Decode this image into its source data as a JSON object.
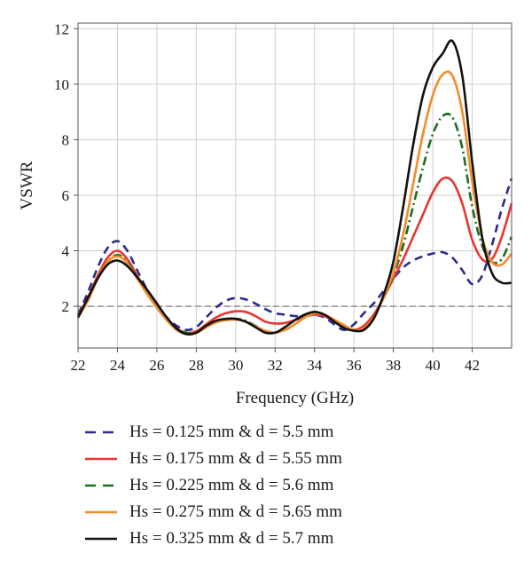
{
  "chart_data": {
    "type": "line",
    "xlabel": "Frequency (GHz)",
    "ylabel": "VSWR",
    "xlim": [
      22,
      44
    ],
    "ylim": [
      0.5,
      12.2
    ],
    "xticks": [
      "22",
      "24",
      "26",
      "28",
      "30",
      "32",
      "34",
      "36",
      "38",
      "40",
      "42"
    ],
    "yticks": [
      "2",
      "4",
      "6",
      "8",
      "10",
      "12"
    ],
    "grid": true,
    "legend_position": "bottom",
    "reference_line": {
      "y": 2,
      "color": "#999999",
      "style": "dashed"
    },
    "series": [
      {
        "name": "Hs = 0.125 mm & d = 5.5 mm",
        "color": "#2b2b8a",
        "style": "dashed",
        "x": [
          22,
          22.5,
          23,
          23.5,
          24,
          24.5,
          25,
          25.5,
          26,
          26.5,
          27,
          27.5,
          28,
          28.5,
          29,
          29.5,
          30,
          30.5,
          31,
          31.5,
          32,
          32.5,
          33,
          33.5,
          34,
          34.5,
          35,
          35.5,
          36,
          36.5,
          37,
          37.5,
          38,
          38.5,
          39,
          39.5,
          40,
          40.5,
          41,
          41.5,
          42,
          42.5,
          43,
          43.5,
          44
        ],
        "values": [
          1.7,
          2.5,
          3.4,
          4.1,
          4.35,
          4.0,
          3.3,
          2.6,
          2.0,
          1.6,
          1.3,
          1.15,
          1.25,
          1.6,
          1.95,
          2.2,
          2.3,
          2.25,
          2.1,
          1.9,
          1.75,
          1.7,
          1.65,
          1.65,
          1.7,
          1.6,
          1.35,
          1.15,
          1.35,
          1.75,
          2.1,
          2.55,
          3.0,
          3.4,
          3.65,
          3.8,
          3.9,
          3.95,
          3.75,
          3.3,
          2.8,
          3.1,
          4.2,
          5.5,
          6.6
        ]
      },
      {
        "name": "Hs = 0.175 mm & d = 5.55 mm",
        "color": "#e8352f",
        "style": "solid",
        "x": [
          22,
          22.5,
          23,
          23.5,
          24,
          24.5,
          25,
          25.5,
          26,
          26.5,
          27,
          27.5,
          28,
          28.5,
          29,
          29.5,
          30,
          30.5,
          31,
          31.5,
          32,
          32.5,
          33,
          33.5,
          34,
          34.5,
          35,
          35.5,
          36,
          36.5,
          37,
          37.5,
          38,
          38.5,
          39,
          39.5,
          40,
          40.5,
          41,
          41.5,
          42,
          42.5,
          43,
          43.5,
          44
        ],
        "values": [
          1.65,
          2.3,
          3.1,
          3.75,
          4.0,
          3.7,
          3.1,
          2.5,
          2.0,
          1.55,
          1.2,
          1.05,
          1.1,
          1.35,
          1.6,
          1.75,
          1.82,
          1.8,
          1.65,
          1.45,
          1.38,
          1.4,
          1.5,
          1.62,
          1.7,
          1.65,
          1.45,
          1.25,
          1.15,
          1.3,
          1.7,
          2.3,
          3.0,
          3.7,
          4.5,
          5.3,
          6.1,
          6.6,
          6.5,
          5.7,
          4.4,
          3.7,
          3.7,
          4.5,
          5.7
        ]
      },
      {
        "name": "Hs = 0.225 mm & d = 5.6 mm",
        "color": "#1e6b22",
        "style": "dashdot",
        "x": [
          22,
          22.5,
          23,
          23.5,
          24,
          24.5,
          25,
          25.5,
          26,
          26.5,
          27,
          27.5,
          28,
          28.5,
          29,
          29.5,
          30,
          30.5,
          31,
          31.5,
          32,
          32.5,
          33,
          33.5,
          34,
          34.5,
          35,
          35.5,
          36,
          36.5,
          37,
          37.5,
          38,
          38.5,
          39,
          39.5,
          40,
          40.5,
          41,
          41.5,
          42,
          42.5,
          43,
          43.5,
          44
        ],
        "values": [
          1.6,
          2.2,
          3.0,
          3.6,
          3.85,
          3.6,
          3.05,
          2.5,
          2.0,
          1.55,
          1.2,
          1.05,
          1.05,
          1.25,
          1.42,
          1.52,
          1.55,
          1.48,
          1.3,
          1.12,
          1.05,
          1.15,
          1.35,
          1.6,
          1.75,
          1.7,
          1.5,
          1.3,
          1.15,
          1.2,
          1.6,
          2.3,
          3.1,
          4.2,
          5.6,
          7.0,
          8.2,
          8.85,
          8.8,
          7.7,
          5.6,
          4.2,
          3.6,
          3.7,
          4.5
        ]
      },
      {
        "name": "Hs = 0.275 mm & d = 5.65 mm",
        "color": "#f28c28",
        "style": "solid",
        "x": [
          22,
          22.5,
          23,
          23.5,
          24,
          24.5,
          25,
          25.5,
          26,
          26.5,
          27,
          27.5,
          28,
          28.5,
          29,
          29.5,
          30,
          30.5,
          31,
          31.5,
          32,
          32.5,
          33,
          33.5,
          34,
          34.5,
          35,
          35.5,
          36,
          36.5,
          37,
          37.5,
          38,
          38.5,
          39,
          39.5,
          40,
          40.5,
          41,
          41.5,
          42,
          42.5,
          43,
          43.5,
          44
        ],
        "values": [
          1.6,
          2.2,
          3.0,
          3.6,
          3.8,
          3.55,
          3.0,
          2.45,
          1.95,
          1.5,
          1.15,
          1.0,
          1.05,
          1.25,
          1.42,
          1.5,
          1.52,
          1.45,
          1.28,
          1.12,
          1.05,
          1.15,
          1.35,
          1.6,
          1.75,
          1.7,
          1.52,
          1.32,
          1.15,
          1.2,
          1.6,
          2.3,
          3.2,
          4.6,
          6.4,
          8.2,
          9.6,
          10.35,
          10.3,
          9.0,
          6.5,
          4.5,
          3.6,
          3.5,
          3.9
        ]
      },
      {
        "name": "Hs = 0.325 mm & d = 5.7 mm",
        "color": "#111111",
        "style": "solid",
        "x": [
          22,
          22.5,
          23,
          23.5,
          24,
          24.5,
          25,
          25.5,
          26,
          26.5,
          27,
          27.5,
          28,
          28.5,
          29,
          29.5,
          30,
          30.5,
          31,
          31.5,
          32,
          32.5,
          33,
          33.5,
          34,
          34.5,
          35,
          35.5,
          36,
          36.5,
          37,
          37.5,
          38,
          38.5,
          39,
          39.5,
          40,
          40.5,
          41,
          41.5,
          42,
          42.5,
          43,
          43.5,
          44
        ],
        "values": [
          1.6,
          2.3,
          3.0,
          3.5,
          3.65,
          3.45,
          3.05,
          2.6,
          2.1,
          1.6,
          1.2,
          1.0,
          1.05,
          1.3,
          1.48,
          1.55,
          1.55,
          1.45,
          1.25,
          1.05,
          1.05,
          1.25,
          1.5,
          1.7,
          1.8,
          1.7,
          1.45,
          1.22,
          1.12,
          1.15,
          1.55,
          2.4,
          3.6,
          5.6,
          7.8,
          9.6,
          10.6,
          11.1,
          11.55,
          10.3,
          7.2,
          4.5,
          3.2,
          2.85,
          2.85
        ]
      }
    ]
  }
}
